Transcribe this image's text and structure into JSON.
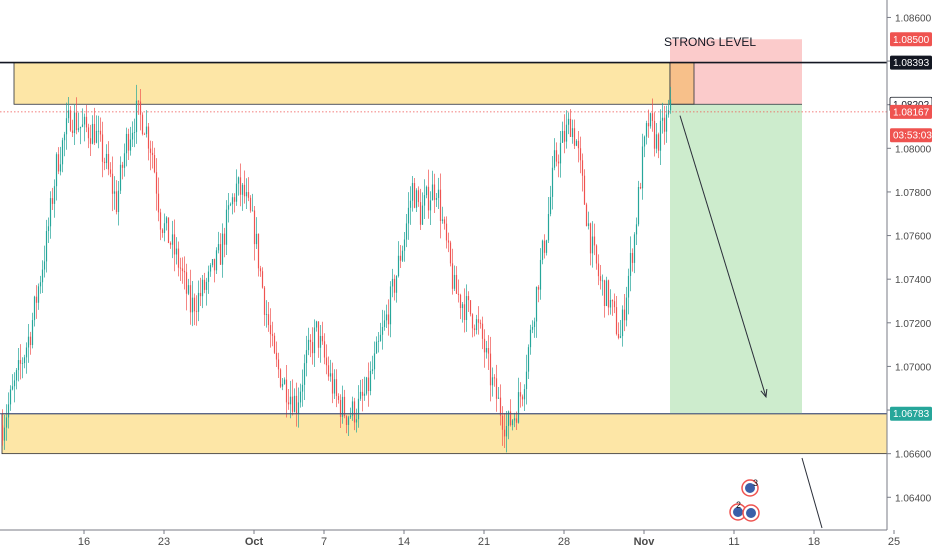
{
  "chart_data": {
    "type": "candlestick",
    "title": "",
    "ylim": [
      1.0625,
      1.0868
    ],
    "y_ticks": [
      "1.08600",
      "1.08400",
      "1.08200",
      "1.08000",
      "1.07800",
      "1.07600",
      "1.07400",
      "1.07200",
      "1.07000",
      "1.06800",
      "1.06600",
      "1.06400"
    ],
    "x_ticks": [
      {
        "label": "16",
        "bar": 41
      },
      {
        "label": "23",
        "bar": 81
      },
      {
        "label": "Oct",
        "bar": 126
      },
      {
        "label": "7",
        "bar": 161
      },
      {
        "label": "14",
        "bar": 201
      },
      {
        "label": "21",
        "bar": 241
      },
      {
        "label": "28",
        "bar": 281
      },
      {
        "label": "Nov",
        "bar": 321
      },
      {
        "label": "11",
        "bar": 366
      },
      {
        "label": "18",
        "bar": 406
      },
      {
        "label": "25",
        "bar": 446
      }
    ],
    "bars_total": 453,
    "colors": {
      "up": "#26a69a",
      "down": "#ef5350",
      "zone": "#fde6a6",
      "zone_border": "#2a2e39",
      "target_fill": "#cdeccd",
      "stop_fill": "#fbcbcb",
      "entry_box": "#f7c08a",
      "arrow": "#2a2e39",
      "price_line": "#ef5350",
      "axis_text": "#4a4a4a"
    },
    "trend": [
      [
        0,
        1.0673
      ],
      [
        8,
        1.0697
      ],
      [
        14,
        1.0716
      ],
      [
        22,
        1.0757
      ],
      [
        27,
        1.0792
      ],
      [
        34,
        1.0815
      ],
      [
        40,
        1.0809
      ],
      [
        46,
        1.0808
      ],
      [
        52,
        1.0792
      ],
      [
        57,
        1.0775
      ],
      [
        62,
        1.0803
      ],
      [
        67,
        1.0816
      ],
      [
        71,
        1.0812
      ],
      [
        75,
        1.0798
      ],
      [
        79,
        1.0768
      ],
      [
        84,
        1.0757
      ],
      [
        89,
        1.0745
      ],
      [
        94,
        1.0727
      ],
      [
        99,
        1.0733
      ],
      [
        103,
        1.0739
      ],
      [
        109,
        1.0752
      ],
      [
        113,
        1.077
      ],
      [
        117,
        1.0782
      ],
      [
        121,
        1.0778
      ],
      [
        126,
        1.0762
      ],
      [
        131,
        1.073
      ],
      [
        136,
        1.0702
      ],
      [
        141,
        1.0692
      ],
      [
        147,
        1.0683
      ],
      [
        152,
        1.0703
      ],
      [
        157,
        1.0716
      ],
      [
        162,
        1.07
      ],
      [
        167,
        1.0685
      ],
      [
        172,
        1.0678
      ],
      [
        177,
        1.068
      ],
      [
        182,
        1.0688
      ],
      [
        187,
        1.0705
      ],
      [
        192,
        1.0722
      ],
      [
        196,
        1.0738
      ],
      [
        201,
        1.076
      ],
      [
        205,
        1.0782
      ],
      [
        209,
        1.077
      ],
      [
        213,
        1.0778
      ],
      [
        217,
        1.0783
      ],
      [
        221,
        1.076
      ],
      [
        226,
        1.0735
      ],
      [
        231,
        1.0728
      ],
      [
        236,
        1.0722
      ],
      [
        240,
        1.0712
      ],
      [
        244,
        1.0695
      ],
      [
        248,
        1.0683
      ],
      [
        252,
        1.0672
      ],
      [
        256,
        1.0678
      ],
      [
        260,
        1.069
      ],
      [
        264,
        1.0714
      ],
      [
        268,
        1.0741
      ],
      [
        272,
        1.0762
      ],
      [
        276,
        1.0793
      ],
      [
        280,
        1.0803
      ],
      [
        284,
        1.0812
      ],
      [
        287,
        1.0803
      ],
      [
        291,
        1.0776
      ],
      [
        295,
        1.0753
      ],
      [
        299,
        1.0738
      ],
      [
        303,
        1.0731
      ],
      [
        306,
        1.0722
      ],
      [
        309,
        1.0713
      ],
      [
        312,
        1.0735
      ],
      [
        316,
        1.076
      ],
      [
        320,
        1.0795
      ],
      [
        323,
        1.0812
      ],
      [
        327,
        1.0803
      ],
      [
        331,
        1.081
      ],
      [
        334,
        1.0817
      ]
    ],
    "zones": [
      {
        "name": "resistance",
        "from_bar": 6,
        "to_bar": 334,
        "low": 1.08202,
        "high": 1.08393
      },
      {
        "name": "support",
        "from_bar": 0,
        "to_bar": 453,
        "low": 1.066,
        "high": 1.06783
      }
    ],
    "lines": [
      {
        "name": "strong-level",
        "price": 1.08393
      },
      {
        "name": "support-top",
        "price": 1.06783
      }
    ],
    "position": {
      "from_bar": 334,
      "to_bar": 400,
      "entry": 1.08202,
      "stop": 1.085,
      "target": 1.06783,
      "arrow": [
        [
          339,
          1.0815
        ],
        [
          382,
          1.0686
        ]
      ]
    },
    "annotation": {
      "text": "STRONG LEVEL",
      "bar": 340,
      "price": 1.08488
    },
    "price_labels": [
      {
        "text": "1.08500",
        "price": 1.085,
        "bg": "#ef5350",
        "fg": "#ffffff"
      },
      {
        "text": "1.08393",
        "price": 1.08393,
        "bg": "#131722",
        "fg": "#ffffff"
      },
      {
        "text": "1.08202",
        "price": 1.08202,
        "bg": "#ffffff",
        "fg": "#131722"
      },
      {
        "text": "1.08167",
        "price": 1.08167,
        "bg": "#ef5350",
        "fg": "#ffffff"
      },
      {
        "text": "03:53:03",
        "price": 1.0806,
        "bg": "#ef5350",
        "fg": "#ffffff"
      },
      {
        "text": "1.06783",
        "price": 1.06783,
        "bg": "#26a69a",
        "fg": "#ffffff"
      }
    ],
    "event_badges": [
      "3",
      "2"
    ]
  }
}
